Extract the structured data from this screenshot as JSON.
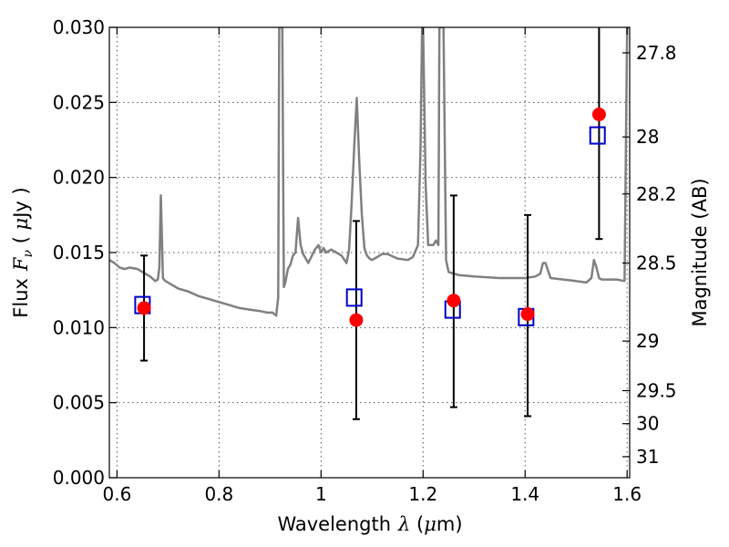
{
  "chart_data": {
    "type": "scatter",
    "xlabel": "Wavelength",
    "xlabel_symbol": "λ",
    "xlabel_unit_open": " (",
    "xlabel_unit_mu": "μ",
    "xlabel_unit_close": "m)",
    "ylabel": "Flux",
    "ylabel_symbol": "F",
    "ylabel_symbol_sub": "ν",
    "ylabel_unit_open": " ( ",
    "ylabel_unit_mu": "μ",
    "ylabel_unit_close": "Jy )",
    "y2label": "Magnitude (AB)",
    "xlim": [
      0.585,
      1.605
    ],
    "ylim": [
      0.0,
      0.03
    ],
    "grid": true,
    "x_ticks": [
      {
        "value": 0.6,
        "label": "0.6"
      },
      {
        "value": 0.8,
        "label": "0.8"
      },
      {
        "value": 1.0,
        "label": "1"
      },
      {
        "value": 1.2,
        "label": "1.2"
      },
      {
        "value": 1.4,
        "label": "1.4"
      },
      {
        "value": 1.6,
        "label": "1.6"
      }
    ],
    "y_ticks": [
      {
        "value": 0.0,
        "label": "0.000"
      },
      {
        "value": 0.005,
        "label": "0.005"
      },
      {
        "value": 0.01,
        "label": "0.010"
      },
      {
        "value": 0.015,
        "label": "0.015"
      },
      {
        "value": 0.02,
        "label": "0.020"
      },
      {
        "value": 0.025,
        "label": "0.025"
      },
      {
        "value": 0.03,
        "label": "0.030"
      }
    ],
    "y2_ticks": [
      {
        "label": "27.8",
        "flux": 0.0283
      },
      {
        "label": "28",
        "flux": 0.0227
      },
      {
        "label": "28.2",
        "flux": 0.0189
      },
      {
        "label": "28.5",
        "flux": 0.0143
      },
      {
        "label": "29",
        "flux": 0.0091
      },
      {
        "label": "29.5",
        "flux": 0.0058
      },
      {
        "label": "30",
        "flux": 0.0036
      },
      {
        "label": "31",
        "flux": 0.0014
      }
    ],
    "series": [
      {
        "kind": "spectrum",
        "color": "#808080",
        "x": [
          0.585,
          0.595,
          0.605,
          0.615,
          0.625,
          0.64,
          0.655,
          0.665,
          0.675,
          0.68,
          0.683,
          0.686,
          0.688,
          0.69,
          0.692,
          0.695,
          0.7,
          0.71,
          0.72,
          0.74,
          0.76,
          0.78,
          0.8,
          0.82,
          0.84,
          0.86,
          0.88,
          0.895,
          0.905,
          0.912,
          0.916,
          0.918,
          0.921,
          0.924,
          0.927,
          0.93,
          0.935,
          0.94,
          0.945,
          0.95,
          0.955,
          0.96,
          0.965,
          0.975,
          0.988,
          0.995,
          1.0,
          1.005,
          1.01,
          1.02,
          1.03,
          1.04,
          1.05,
          1.055,
          1.06,
          1.065,
          1.07,
          1.075,
          1.08,
          1.085,
          1.09,
          1.095,
          1.1,
          1.11,
          1.12,
          1.13,
          1.15,
          1.17,
          1.18,
          1.19,
          1.195,
          1.198,
          1.2,
          1.205,
          1.21,
          1.22,
          1.225,
          1.23,
          1.232,
          1.235,
          1.238,
          1.24,
          1.245,
          1.25,
          1.27,
          1.3,
          1.35,
          1.4,
          1.42,
          1.43,
          1.435,
          1.44,
          1.45,
          1.5,
          1.52,
          1.53,
          1.535,
          1.54,
          1.545,
          1.55,
          1.56,
          1.58,
          1.595,
          1.6,
          1.605
        ],
        "y": [
          0.0145,
          0.0143,
          0.014,
          0.0139,
          0.014,
          0.0139,
          0.0136,
          0.0134,
          0.0131,
          0.0132,
          0.014,
          0.0188,
          0.016,
          0.0133,
          0.0132,
          0.0131,
          0.013,
          0.0128,
          0.0126,
          0.0124,
          0.0121,
          0.0119,
          0.0117,
          0.0115,
          0.0113,
          0.0112,
          0.0111,
          0.011,
          0.011,
          0.0108,
          0.012,
          0.03,
          0.03,
          0.03,
          0.0127,
          0.013,
          0.0139,
          0.0142,
          0.0148,
          0.015,
          0.0173,
          0.0155,
          0.0149,
          0.0143,
          0.0152,
          0.0155,
          0.015,
          0.0153,
          0.015,
          0.0152,
          0.015,
          0.0148,
          0.0143,
          0.0152,
          0.0183,
          0.022,
          0.0253,
          0.021,
          0.0175,
          0.0153,
          0.0148,
          0.0146,
          0.0145,
          0.0147,
          0.0149,
          0.0149,
          0.0146,
          0.0145,
          0.0147,
          0.0155,
          0.022,
          0.03,
          0.03,
          0.0195,
          0.0155,
          0.0155,
          0.0158,
          0.0155,
          0.03,
          0.03,
          0.03,
          0.03,
          0.0145,
          0.0137,
          0.0135,
          0.0134,
          0.0133,
          0.0133,
          0.0134,
          0.0136,
          0.0143,
          0.0143,
          0.0133,
          0.0131,
          0.013,
          0.0133,
          0.0145,
          0.014,
          0.0133,
          0.0132,
          0.0132,
          0.0132,
          0.0131,
          0.03,
          0.03
        ]
      },
      {
        "kind": "points",
        "marker": "circle",
        "color": "#ff0000",
        "x": [
          0.653,
          1.069,
          1.26,
          1.405,
          1.545
        ],
        "y": [
          0.0113,
          0.0105,
          0.0118,
          0.0109,
          0.0242
        ],
        "y_err_low": [
          0.0078,
          0.0039,
          0.0047,
          0.0041,
          0.0159
        ],
        "y_err_high": [
          0.0148,
          0.0171,
          0.0188,
          0.0175,
          0.0301
        ]
      },
      {
        "kind": "points",
        "marker": "open-square",
        "color": "#0000cc",
        "x": [
          0.65,
          1.065,
          1.258,
          1.402,
          1.542
        ],
        "y": [
          0.0115,
          0.012,
          0.0112,
          0.0107,
          0.0228
        ]
      }
    ]
  }
}
